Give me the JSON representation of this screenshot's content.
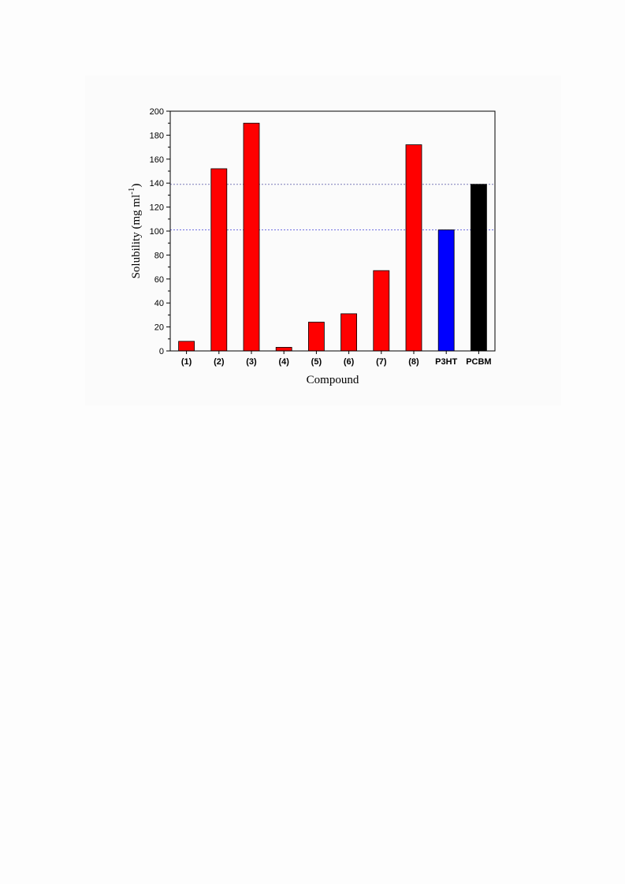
{
  "chart_data": {
    "type": "bar",
    "categories": [
      "(1)",
      "(2)",
      "(3)",
      "(4)",
      "(5)",
      "(6)",
      "(7)",
      "(8)",
      "P3HT",
      "PCBM"
    ],
    "values": [
      8,
      152,
      190,
      3,
      24,
      31,
      67,
      172,
      101,
      139
    ],
    "bar_colors": [
      "#ff0000",
      "#ff0000",
      "#ff0000",
      "#ff0000",
      "#ff0000",
      "#ff0000",
      "#ff0000",
      "#ff0000",
      "#0000ff",
      "#000000"
    ],
    "xlabel": "Compound",
    "ylabel_main": "Solubility (mg ml",
    "ylabel_sup": "-1",
    "ylabel_close": ")",
    "ylim": [
      0,
      200
    ],
    "yticks": [
      0,
      20,
      40,
      60,
      80,
      100,
      120,
      140,
      160,
      180,
      200
    ],
    "reference_lines": [
      {
        "value": 101,
        "color": "#6f6fe0"
      },
      {
        "value": 139,
        "color": "#7a7ab8"
      }
    ],
    "grid": false,
    "legend": "none"
  }
}
